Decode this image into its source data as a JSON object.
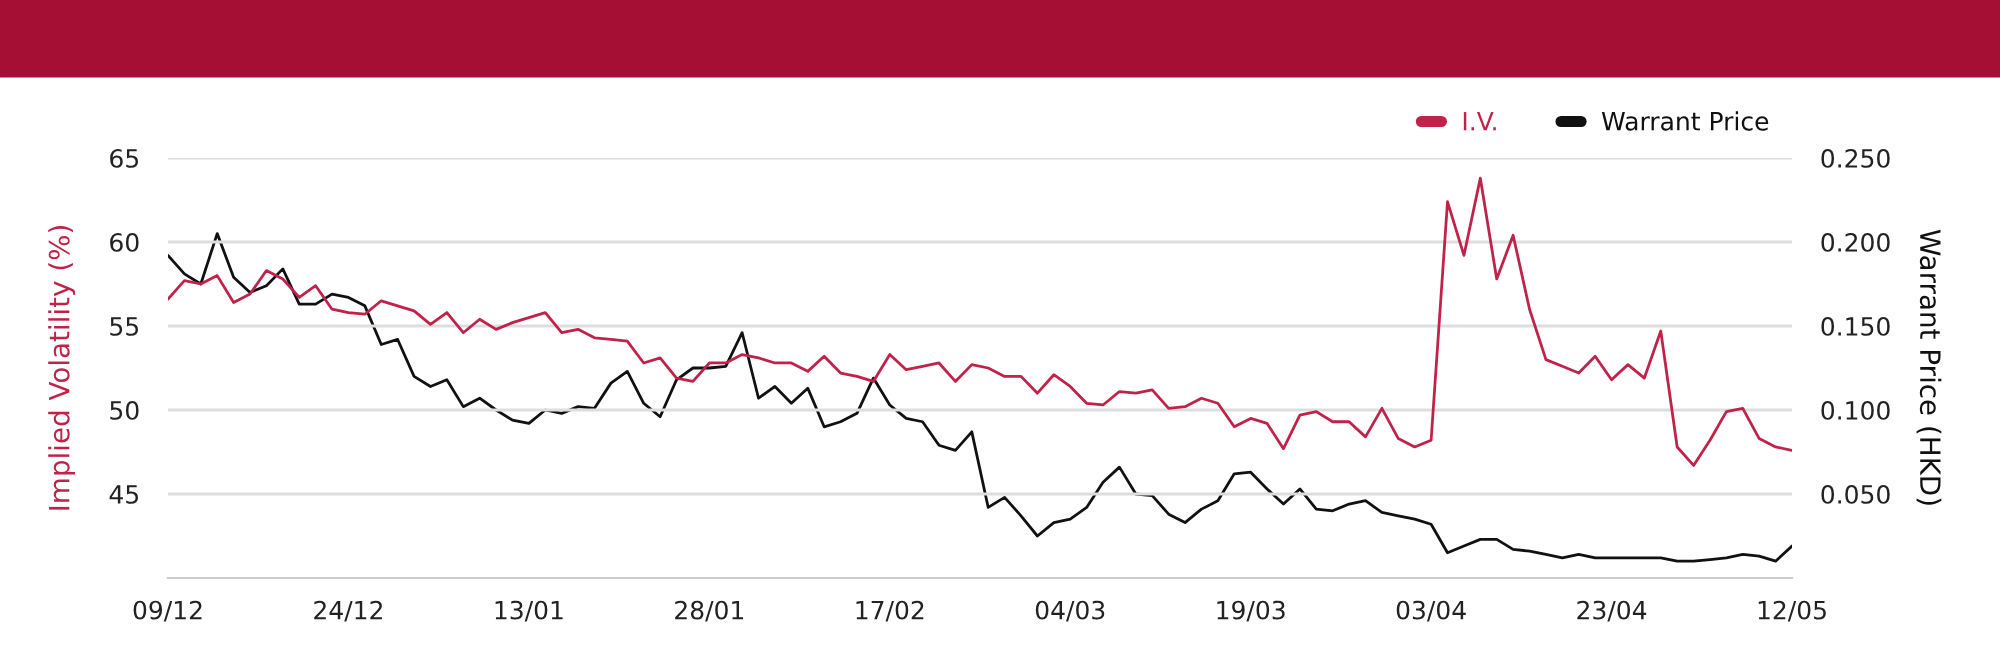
{
  "chart_data": {
    "type": "line",
    "categories": [
      "09/12",
      null,
      null,
      null,
      null,
      null,
      null,
      null,
      null,
      null,
      null,
      "24/12",
      null,
      null,
      null,
      null,
      null,
      null,
      null,
      null,
      null,
      null,
      "13/01",
      null,
      null,
      null,
      null,
      null,
      null,
      null,
      null,
      null,
      null,
      "28/01",
      null,
      null,
      null,
      null,
      null,
      null,
      null,
      null,
      null,
      null,
      "17/02",
      null,
      null,
      null,
      null,
      null,
      null,
      null,
      null,
      null,
      null,
      "04/03",
      null,
      null,
      null,
      null,
      null,
      null,
      null,
      null,
      null,
      null,
      "19/03",
      null,
      null,
      null,
      null,
      null,
      null,
      null,
      null,
      null,
      null,
      "03/04",
      null,
      null,
      null,
      null,
      null,
      null,
      null,
      null,
      null,
      null,
      "23/04",
      null,
      null,
      null,
      null,
      null,
      null,
      null,
      null,
      null,
      null,
      "12/05"
    ],
    "series": [
      {
        "name": "I.V.",
        "color": "#c0224a",
        "values": [
          56.6,
          57.7,
          57.5,
          58.0,
          56.4,
          56.9,
          58.3,
          57.8,
          56.7,
          57.4,
          56.0,
          55.8,
          55.7,
          56.5,
          56.2,
          55.9,
          55.1,
          55.8,
          54.6,
          55.4,
          54.8,
          55.2,
          55.5,
          55.8,
          54.6,
          54.8,
          54.3,
          54.2,
          54.1,
          52.8,
          53.1,
          51.9,
          51.7,
          52.8,
          52.8,
          53.3,
          53.1,
          52.8,
          52.8,
          52.3,
          53.2,
          52.2,
          52.0,
          51.7,
          53.3,
          52.4,
          52.6,
          52.8,
          51.7,
          52.7,
          52.5,
          52.0,
          52.0,
          51.0,
          52.1,
          51.4,
          50.4,
          50.3,
          51.1,
          51.0,
          51.2,
          50.1,
          50.2,
          50.7,
          50.4,
          49.0,
          49.5,
          49.2,
          47.7,
          49.7,
          49.9,
          49.3,
          49.3,
          48.4,
          50.1,
          48.3,
          47.8,
          48.2,
          62.4,
          59.2,
          63.8,
          57.8,
          60.4,
          56.0,
          53.0,
          52.6,
          52.2,
          53.2,
          51.8,
          52.7,
          51.9,
          54.7,
          47.8,
          46.7,
          48.2,
          49.9,
          50.1,
          48.3,
          47.8,
          47.6
        ]
      },
      {
        "name": "Warrant Price",
        "color": "#111111",
        "axis": "y2",
        "values": [
          0.192,
          0.181,
          0.175,
          0.205,
          0.179,
          0.17,
          0.174,
          0.184,
          0.163,
          0.163,
          0.169,
          0.167,
          0.162,
          0.139,
          0.142,
          0.12,
          0.114,
          0.118,
          0.102,
          0.107,
          0.1,
          0.094,
          0.092,
          0.1,
          0.098,
          0.102,
          0.101,
          0.116,
          0.123,
          0.104,
          0.096,
          0.118,
          0.125,
          0.125,
          0.126,
          0.146,
          0.107,
          0.114,
          0.104,
          0.113,
          0.09,
          0.093,
          0.098,
          0.119,
          0.103,
          0.095,
          0.093,
          0.079,
          0.076,
          0.087,
          0.042,
          0.048,
          0.037,
          0.025,
          0.033,
          0.035,
          0.042,
          0.057,
          0.066,
          0.05,
          0.049,
          0.038,
          0.033,
          0.041,
          0.046,
          0.062,
          0.063,
          0.053,
          0.044,
          0.053,
          0.041,
          0.04,
          0.044,
          0.046,
          0.039,
          0.037,
          0.035,
          0.032,
          0.015,
          0.019,
          0.023,
          0.023,
          0.017,
          0.016,
          0.014,
          0.012,
          0.014,
          0.012,
          0.012,
          0.012,
          0.012,
          0.012,
          0.01,
          0.01,
          0.011,
          0.012,
          0.014,
          0.013,
          0.01,
          0.019
        ]
      }
    ],
    "ylabel": "Implied Volatility (%)",
    "y2label": "Warrant Price (HKD)",
    "ylim": [
      40,
      65
    ],
    "yticks": [
      45,
      50,
      55,
      60,
      65
    ],
    "y2lim": [
      0,
      0.25
    ],
    "y2ticks": [
      {
        "value": 0.05,
        "label": "0.050"
      },
      {
        "value": 0.1,
        "label": "0.100"
      },
      {
        "value": 0.15,
        "label": "0.150"
      },
      {
        "value": 0.2,
        "label": "0.200"
      },
      {
        "value": 0.25,
        "label": "0.250"
      }
    ],
    "grid": "y",
    "legend": "top right",
    "line_style": "solid"
  }
}
